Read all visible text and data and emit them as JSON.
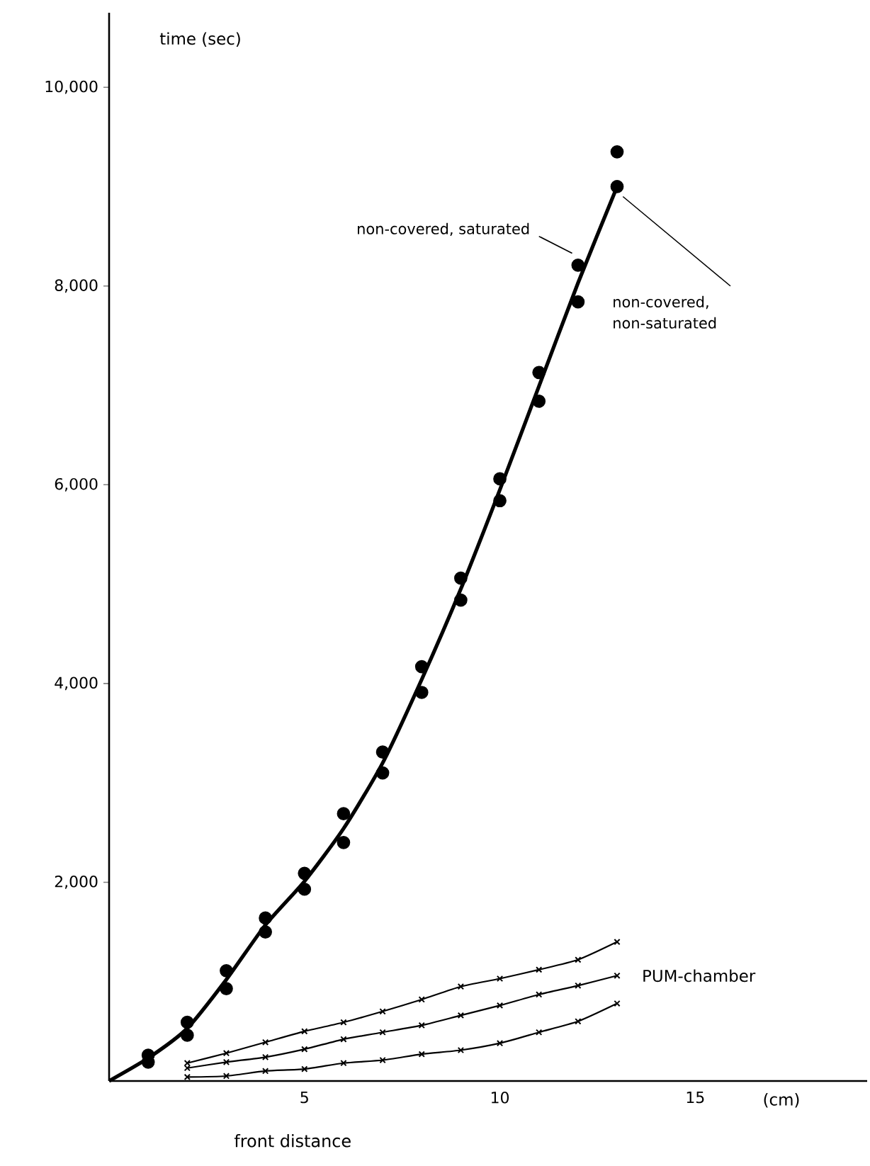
{
  "chart_data": {
    "type": "scatter",
    "xlabel": "front distance",
    "ylabel": "time (sec)",
    "xlim": [
      0,
      19.4
    ],
    "ylim": [
      0,
      10750
    ],
    "xticks": [
      5,
      10,
      15
    ],
    "yticks": [
      {
        "value": 2000,
        "label": "2,000"
      },
      {
        "value": 4000,
        "label": "4,000"
      },
      {
        "value": 6000,
        "label": "6,000"
      },
      {
        "value": 8000,
        "label": "8,000"
      },
      {
        "value": 10000,
        "label": "10,000"
      }
    ],
    "marker": "circle",
    "series": [
      {
        "name": "non-covered, saturated",
        "color": "#000000",
        "x": [
          1,
          2,
          3,
          4,
          5,
          6,
          7,
          8,
          9,
          10,
          11,
          12,
          13
        ],
        "values": [
          260,
          590,
          1110,
          1640,
          2090,
          2690,
          3310,
          4170,
          5060,
          6060,
          7130,
          8210,
          9350
        ]
      },
      {
        "name": "non-covered, non-saturated",
        "color": "#000000",
        "x": [
          1,
          2,
          3,
          4,
          5,
          6,
          7,
          8,
          9,
          10,
          11,
          12,
          13
        ],
        "values": [
          190,
          460,
          930,
          1500,
          1930,
          2400,
          3100,
          3910,
          4840,
          5840,
          6840,
          7840,
          9000
        ]
      },
      {
        "type": "line",
        "marker": "none",
        "color": "#000000",
        "x": [
          0,
          1,
          2,
          3,
          4,
          5,
          6,
          7,
          8,
          9,
          10,
          11,
          12,
          13
        ],
        "values": [
          0,
          230,
          530,
          1020,
          1570,
          2010,
          2540,
          3200,
          4040,
          4950,
          5950,
          6990,
          8030,
          9000
        ]
      },
      {
        "type": "line",
        "marker": "cross",
        "color": "#000000",
        "x": [
          2,
          3,
          4,
          5,
          6,
          7,
          8,
          9,
          10,
          11,
          12,
          13
        ],
        "values": [
          180,
          280,
          390,
          500,
          590,
          700,
          820,
          950,
          1030,
          1120,
          1220,
          1400
        ]
      },
      {
        "type": "line",
        "marker": "cross",
        "color": "#000000",
        "x": [
          2,
          3,
          4,
          5,
          6,
          7,
          8,
          9,
          10,
          11,
          12,
          13
        ],
        "values": [
          130,
          190,
          240,
          320,
          420,
          490,
          560,
          660,
          760,
          870,
          960,
          1060
        ]
      },
      {
        "type": "line",
        "marker": "cross",
        "color": "#000000",
        "x": [
          2,
          3,
          4,
          5,
          6,
          7,
          8,
          9,
          10,
          11,
          12,
          13
        ],
        "values": [
          40,
          50,
          100,
          120,
          180,
          210,
          270,
          310,
          380,
          490,
          600,
          780
        ]
      }
    ],
    "annotations": [
      "(cm)",
      {
        "text": "PUM-chamber",
        "x": 13,
        "y": 1060
      }
    ]
  }
}
